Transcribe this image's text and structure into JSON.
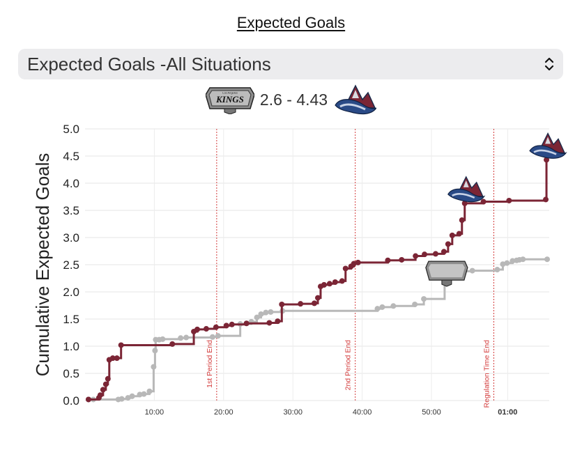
{
  "title": "Expected Goals",
  "dropdown": {
    "selected": "Expected Goals -All Situations"
  },
  "score": {
    "away_team": "KINGS",
    "away_team_logo_subtitle": "Los Angeles",
    "text": "2.6 - 4.43",
    "home_team": "Avalanche"
  },
  "colors": {
    "kings": "#b8b8b8",
    "avalanche": "#7b2535",
    "period_line": "#d33a3a"
  },
  "icons": {
    "dropdown": "chevron-up-down-icon",
    "kings_logo": "kings-logo-icon",
    "avalanche_logo": "avalanche-logo-icon"
  },
  "chart_data": {
    "type": "line",
    "step": true,
    "ylabel": "Cumulative Expected Goals",
    "xlabel": "",
    "ylim": [
      0,
      5
    ],
    "xlim": [
      0,
      67
    ],
    "yticks": [
      "0.0",
      "0.5",
      "1.0",
      "1.5",
      "2.0",
      "2.5",
      "3.0",
      "3.5",
      "4.0",
      "4.5",
      "5.0"
    ],
    "xticks": [
      {
        "value": 10,
        "label": "10:00",
        "bold": false
      },
      {
        "value": 20,
        "label": "20:00",
        "bold": false
      },
      {
        "value": 30,
        "label": "30:00",
        "bold": false
      },
      {
        "value": 40,
        "label": "40:00",
        "bold": false
      },
      {
        "value": 50,
        "label": "50:00",
        "bold": false
      },
      {
        "value": 61,
        "label": "01:00",
        "bold": true
      }
    ],
    "grid": true,
    "annotations": [
      {
        "x": 19,
        "label": "1st Period End"
      },
      {
        "x": 39,
        "label": "2nd Period End"
      },
      {
        "x": 59,
        "label": "Regulation Time End"
      }
    ],
    "goal_markers": [
      {
        "team": "Avalanche",
        "x": 54.8,
        "y": 3.63
      },
      {
        "team": "KINGS",
        "x": 52.2,
        "y": 2.37
      },
      {
        "team": "Avalanche",
        "x": 66.6,
        "y": 4.43
      }
    ],
    "series": [
      {
        "name": "KINGS",
        "points": [
          [
            0.5,
            0.02
          ],
          [
            1.2,
            0.02
          ],
          [
            4.8,
            0.02
          ],
          [
            5.3,
            0.03
          ],
          [
            6.2,
            0.05
          ],
          [
            6.8,
            0.08
          ],
          [
            7.9,
            0.11
          ],
          [
            8.5,
            0.12
          ],
          [
            9.3,
            0.17
          ],
          [
            9.9,
            0.62
          ],
          [
            10.1,
            0.92
          ],
          [
            10.2,
            1.12
          ],
          [
            10.7,
            1.12
          ],
          [
            11.2,
            1.13
          ],
          [
            13.8,
            1.15
          ],
          [
            14.6,
            1.16
          ],
          [
            18.4,
            1.17
          ],
          [
            19.2,
            1.19
          ],
          [
            22.4,
            1.41
          ],
          [
            24.0,
            1.45
          ],
          [
            24.8,
            1.53
          ],
          [
            25.4,
            1.59
          ],
          [
            26.1,
            1.62
          ],
          [
            26.8,
            1.63
          ],
          [
            28.5,
            1.65
          ],
          [
            42.2,
            1.69
          ],
          [
            42.9,
            1.72
          ],
          [
            44.5,
            1.74
          ],
          [
            47.6,
            1.77
          ],
          [
            48.9,
            1.87
          ],
          [
            51.9,
            2.37
          ],
          [
            53.8,
            2.38
          ],
          [
            55.9,
            2.39
          ],
          [
            59.5,
            2.41
          ],
          [
            60.3,
            2.51
          ],
          [
            60.9,
            2.53
          ],
          [
            61.7,
            2.57
          ],
          [
            62.3,
            2.58
          ],
          [
            62.7,
            2.59
          ],
          [
            63.2,
            2.6
          ],
          [
            66.7,
            2.6
          ]
        ]
      },
      {
        "name": "Avalanche",
        "points": [
          [
            0.5,
            0.02
          ],
          [
            2.0,
            0.05
          ],
          [
            2.2,
            0.1
          ],
          [
            2.6,
            0.2
          ],
          [
            3.0,
            0.3
          ],
          [
            3.3,
            0.4
          ],
          [
            3.5,
            0.75
          ],
          [
            4.0,
            0.78
          ],
          [
            4.6,
            0.78
          ],
          [
            5.2,
            1.02
          ],
          [
            12.6,
            1.04
          ],
          [
            15.7,
            1.27
          ],
          [
            16.2,
            1.31
          ],
          [
            17.5,
            1.32
          ],
          [
            18.9,
            1.35
          ],
          [
            20.4,
            1.38
          ],
          [
            21.2,
            1.4
          ],
          [
            23.3,
            1.42
          ],
          [
            26.6,
            1.43
          ],
          [
            27.8,
            1.46
          ],
          [
            28.4,
            1.77
          ],
          [
            31.1,
            1.78
          ],
          [
            33.1,
            1.79
          ],
          [
            33.6,
            1.89
          ],
          [
            34.0,
            2.1
          ],
          [
            34.5,
            2.13
          ],
          [
            35.3,
            2.15
          ],
          [
            36.1,
            2.18
          ],
          [
            37.1,
            2.2
          ],
          [
            37.6,
            2.43
          ],
          [
            38.4,
            2.47
          ],
          [
            38.8,
            2.52
          ],
          [
            39.4,
            2.54
          ],
          [
            43.7,
            2.58
          ],
          [
            45.7,
            2.59
          ],
          [
            47.7,
            2.66
          ],
          [
            49.0,
            2.69
          ],
          [
            50.6,
            2.7
          ],
          [
            51.8,
            2.74
          ],
          [
            52.4,
            2.88
          ],
          [
            53.0,
            3.04
          ],
          [
            54.0,
            3.07
          ],
          [
            54.4,
            3.32
          ],
          [
            54.8,
            3.63
          ],
          [
            57.5,
            3.66
          ],
          [
            61.2,
            3.68
          ],
          [
            66.5,
            3.7
          ],
          [
            66.6,
            4.43
          ]
        ]
      }
    ]
  }
}
